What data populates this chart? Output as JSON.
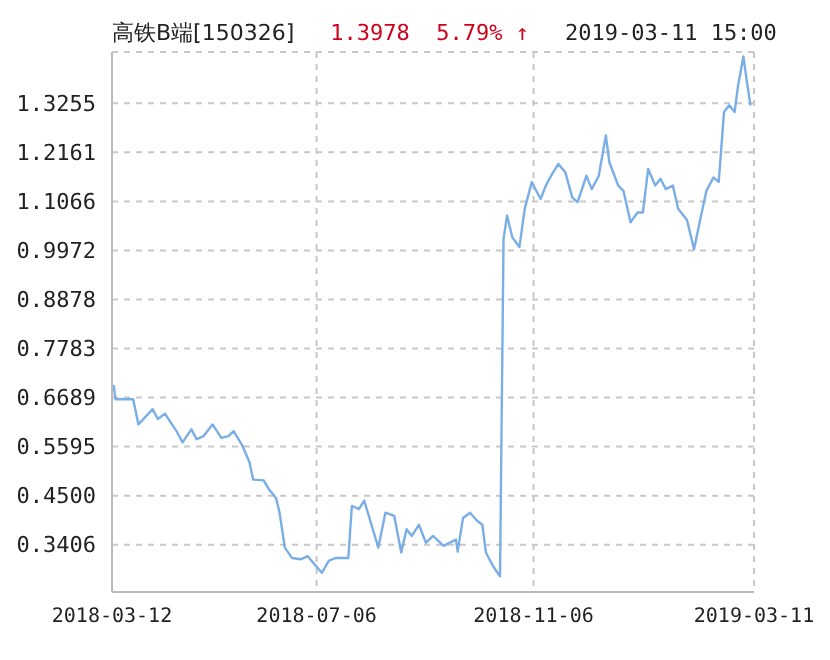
{
  "chart_data": {
    "type": "line",
    "title": "高铁B端[150326]",
    "annotations": [
      "1.3978  5.79% ↑",
      "2019-03-11 15:00"
    ],
    "x": [
      "2018-03-12",
      "2018-03-13",
      "2018-03-14",
      "2018-03-24",
      "2018-03-27",
      "2018-04-04",
      "2018-04-07",
      "2018-04-11",
      "2018-04-18",
      "2018-04-21",
      "2018-04-26",
      "2018-04-29",
      "2018-05-03",
      "2018-05-08",
      "2018-05-13",
      "2018-05-17",
      "2018-05-20",
      "2018-05-25",
      "2018-05-29",
      "2018-05-31",
      "2018-06-06",
      "2018-06-09",
      "2018-06-13",
      "2018-06-15",
      "2018-06-18",
      "2018-06-22",
      "2018-06-27",
      "2018-07-01",
      "2018-07-05",
      "2018-07-09",
      "2018-07-13",
      "2018-07-17",
      "2018-07-24",
      "2018-07-26",
      "2018-07-30",
      "2018-08-02",
      "2018-08-10",
      "2018-08-14",
      "2018-08-19",
      "2018-08-23",
      "2018-08-26",
      "2018-08-29",
      "2018-09-02",
      "2018-09-06",
      "2018-09-10",
      "2018-09-16",
      "2018-09-23",
      "2018-09-24",
      "2018-09-27",
      "2018-10-01",
      "2018-10-05",
      "2018-10-08",
      "2018-10-10",
      "2018-10-14",
      "2018-10-18",
      "2018-10-20",
      "2018-10-22",
      "2018-10-25",
      "2018-10-29",
      "2018-11-01",
      "2018-11-05",
      "2018-11-10",
      "2018-11-13",
      "2018-11-16",
      "2018-11-20",
      "2018-11-24",
      "2018-11-28",
      "2018-12-01",
      "2018-12-06",
      "2018-12-09",
      "2018-12-13",
      "2018-12-17",
      "2018-12-19",
      "2018-12-24",
      "2018-12-27",
      "2018-12-31",
      "2019-01-04",
      "2019-01-07",
      "2019-01-10",
      "2019-01-14",
      "2019-01-17",
      "2019-01-20",
      "2019-01-24",
      "2019-01-27",
      "2019-02-01",
      "2019-02-05",
      "2019-02-09",
      "2019-02-12",
      "2019-02-16",
      "2019-02-19",
      "2019-02-22",
      "2019-02-25",
      "2019-02-28",
      "2019-03-02",
      "2019-03-05",
      "2019-03-07",
      "2019-03-09"
    ],
    "series": [
      {
        "color": "#7aaee6",
        "values": [
          0.695,
          0.695,
          0.665,
          0.665,
          0.609,
          0.643,
          0.621,
          0.633,
          0.591,
          0.569,
          0.598,
          0.576,
          0.583,
          0.609,
          0.579,
          0.583,
          0.594,
          0.561,
          0.524,
          0.486,
          0.484,
          0.464,
          0.445,
          0.412,
          0.334,
          0.311,
          0.308,
          0.315,
          0.296,
          0.278,
          0.305,
          0.311,
          0.311,
          0.427,
          0.42,
          0.439,
          0.334,
          0.412,
          0.405,
          0.323,
          0.375,
          0.36,
          0.385,
          0.345,
          0.36,
          0.338,
          0.352,
          0.325,
          0.4,
          0.412,
          0.394,
          0.385,
          0.323,
          0.293,
          0.27,
          1.023,
          1.075,
          1.026,
          1.005,
          1.09,
          1.15,
          1.112,
          1.142,
          1.164,
          1.19,
          1.172,
          1.115,
          1.105,
          1.164,
          1.134,
          1.164,
          1.254,
          1.194,
          1.142,
          1.13,
          1.06,
          1.082,
          1.082,
          1.179,
          1.142,
          1.157,
          1.134,
          1.142,
          1.09,
          1.065,
          1.0,
          1.075,
          1.13,
          1.16,
          1.15,
          1.306,
          1.321,
          1.306,
          1.366,
          1.43,
          1.373,
          1.321
        ]
      }
    ],
    "xlim": [
      "2018-03-12",
      "2019-03-11"
    ],
    "xticks": [
      "2018-03-12",
      "2018-07-06",
      "2018-11-06",
      "2019-03-11"
    ],
    "ylim": [
      0.235,
      1.44
    ],
    "yticks": [
      0.3406,
      {
        "value": 0.45,
        "label": "0.4500"
      },
      0.5595,
      0.6689,
      0.7783,
      0.8878,
      0.9972,
      1.1066,
      1.2161,
      1.3255
    ],
    "grid": true,
    "marker": "none",
    "line_style": "solid"
  }
}
